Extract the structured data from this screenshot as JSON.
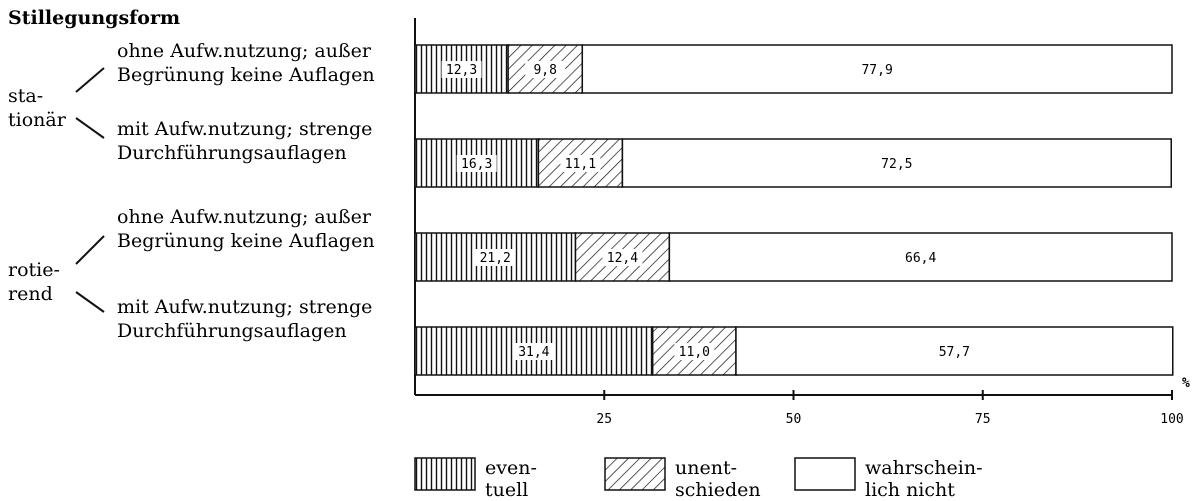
{
  "chart_data": {
    "type": "bar",
    "stacked": true,
    "orientation": "horizontal",
    "title": "Stillegungsform",
    "groups": [
      {
        "label_lines": [
          "sta-",
          "tionär"
        ]
      },
      {
        "label_lines": [
          "rotie-",
          "rend"
        ]
      }
    ],
    "categories": [
      {
        "group": 0,
        "lines": [
          "ohne Aufw.nutzung; außer",
          "Begrünung keine Auflagen"
        ]
      },
      {
        "group": 0,
        "lines": [
          "mit Aufw.nutzung; strenge",
          "Durchführungsauflagen"
        ]
      },
      {
        "group": 1,
        "lines": [
          "ohne Aufw.nutzung; außer",
          "Begrünung keine Auflagen"
        ]
      },
      {
        "group": 1,
        "lines": [
          "mit Aufw.nutzung; strenge",
          "Durchführungsauflagen"
        ]
      }
    ],
    "series": [
      {
        "name_lines": [
          "even-",
          "tuell"
        ],
        "pattern": "vertical-lines",
        "values": [
          12.3,
          16.3,
          21.2,
          31.4
        ],
        "labels": [
          "12,3",
          "16,3",
          "21,2",
          "31,4"
        ]
      },
      {
        "name_lines": [
          "unent-",
          "schieden"
        ],
        "pattern": "diagonal-lines",
        "values": [
          9.8,
          11.1,
          12.4,
          11.0
        ],
        "labels": [
          "9,8",
          "11,1",
          "12,4",
          "11,0"
        ]
      },
      {
        "name_lines": [
          "wahrschein-",
          "lich nicht"
        ],
        "pattern": "none",
        "values": [
          77.9,
          72.5,
          66.4,
          57.7
        ],
        "labels": [
          "77,9",
          "72,5",
          "66,4",
          "57,7"
        ]
      }
    ],
    "x_unit": "%",
    "xlim": [
      0,
      100
    ],
    "xticks": [
      25,
      50,
      75,
      100
    ],
    "xtick_labels": [
      "25",
      "50",
      "75",
      "100"
    ],
    "grid": false,
    "legend_position": "bottom",
    "colors": {
      "ink": "#111111",
      "fill": "#ffffff"
    }
  }
}
